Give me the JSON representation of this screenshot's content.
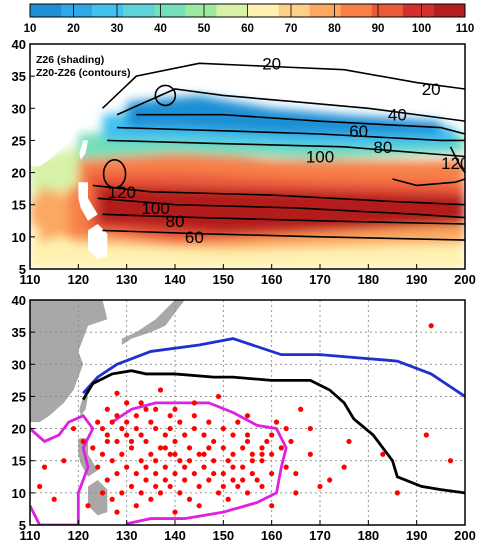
{
  "colors": {
    "colorbar": [
      "#1f8fd6",
      "#2fa7e8",
      "#43c1ee",
      "#5fd3d9",
      "#74dfb8",
      "#9ee9a0",
      "#d8f2a8",
      "#fff2b0",
      "#fdd08a",
      "#fba860",
      "#f78048",
      "#ec5a3c",
      "#d43030",
      "#b41f1f"
    ],
    "land": "#a8a8a8",
    "grid": "#8a8a8a",
    "contour": "#000000",
    "dots": "#ff0000",
    "blue_line": "#1f2fd0",
    "black_line": "#000000",
    "magenta_line": "#e020e0"
  },
  "chart_data": [
    {
      "type": "colorbar",
      "ticks": [
        10,
        20,
        30,
        40,
        50,
        60,
        70,
        80,
        90,
        100,
        110
      ],
      "range": [
        10,
        110
      ]
    },
    {
      "type": "heatmap",
      "title_lines": [
        "Z26 (shading)",
        "Z20-Z26 (contours)"
      ],
      "xlim": [
        110,
        200
      ],
      "ylim": [
        5,
        40
      ],
      "xticks": [
        110,
        120,
        130,
        140,
        150,
        160,
        170,
        180,
        190,
        200
      ],
      "yticks": [
        5,
        10,
        15,
        20,
        25,
        30,
        35,
        40
      ],
      "contour_labels": [
        {
          "text": "20",
          "lon": 160,
          "lat": 37
        },
        {
          "text": "20",
          "lon": 193,
          "lat": 33
        },
        {
          "text": "40",
          "lon": 186,
          "lat": 29
        },
        {
          "text": "60",
          "lon": 178,
          "lat": 26.5
        },
        {
          "text": "80",
          "lon": 183,
          "lat": 24
        },
        {
          "text": "100",
          "lon": 170,
          "lat": 22.5
        },
        {
          "text": "120",
          "lon": 198,
          "lat": 21.5
        },
        {
          "text": "120",
          "lon": 129,
          "lat": 17
        },
        {
          "text": "100",
          "lon": 136,
          "lat": 14.5
        },
        {
          "text": "80",
          "lon": 140,
          "lat": 12.5
        },
        {
          "text": "60",
          "lon": 144,
          "lat": 10
        }
      ]
    },
    {
      "type": "scatter",
      "xlim": [
        110,
        200
      ],
      "ylim": [
        5,
        40
      ],
      "xticks": [
        110,
        120,
        130,
        140,
        150,
        160,
        170,
        180,
        190,
        200
      ],
      "yticks": [
        5,
        10,
        15,
        20,
        25,
        30,
        35,
        40
      ],
      "grid": true,
      "blue_line": [
        [
          121,
          25.5
        ],
        [
          124,
          28
        ],
        [
          128,
          30
        ],
        [
          135,
          32
        ],
        [
          145,
          33
        ],
        [
          152,
          34
        ],
        [
          156,
          33
        ],
        [
          162,
          31.5
        ],
        [
          170,
          31.5
        ],
        [
          178,
          31
        ],
        [
          186,
          30.5
        ],
        [
          193,
          28.5
        ],
        [
          200,
          25
        ]
      ],
      "black_line": [
        [
          121,
          24.5
        ],
        [
          123,
          27
        ],
        [
          127,
          28.5
        ],
        [
          131,
          29
        ],
        [
          134,
          28.5
        ],
        [
          140,
          28.5
        ],
        [
          148,
          28
        ],
        [
          152,
          28
        ],
        [
          160,
          27.5
        ],
        [
          168,
          27.5
        ],
        [
          172,
          26
        ],
        [
          175,
          24
        ],
        [
          177,
          21.5
        ],
        [
          181,
          19
        ],
        [
          185,
          15
        ],
        [
          186,
          12.5
        ],
        [
          191,
          11
        ],
        [
          195,
          10.5
        ],
        [
          200,
          10
        ]
      ],
      "magenta_line": [
        [
          110,
          20
        ],
        [
          113,
          18
        ],
        [
          116,
          19
        ],
        [
          118,
          21
        ],
        [
          121,
          22
        ],
        [
          123,
          20
        ],
        [
          121,
          17
        ],
        [
          122,
          14
        ],
        [
          120,
          10
        ],
        [
          120,
          5
        ],
        [
          112,
          5
        ],
        [
          110,
          8
        ]
      ],
      "magenta_line_2": [
        [
          127,
          21
        ],
        [
          131,
          23
        ],
        [
          136,
          24
        ],
        [
          142,
          24
        ],
        [
          147,
          24
        ],
        [
          152,
          22.5
        ],
        [
          157,
          20.5
        ],
        [
          161,
          20
        ],
        [
          163,
          17
        ],
        [
          162,
          14
        ],
        [
          161,
          10
        ],
        [
          157,
          8.5
        ],
        [
          150,
          7
        ],
        [
          142,
          6
        ],
        [
          135,
          6
        ],
        [
          130,
          5.2
        ]
      ],
      "points": [
        [
          119,
          20
        ],
        [
          117,
          15
        ],
        [
          113,
          14
        ],
        [
          112,
          11
        ],
        [
          115,
          9
        ],
        [
          122,
          8
        ],
        [
          124,
          21
        ],
        [
          126,
          23
        ],
        [
          128,
          22
        ],
        [
          130,
          21
        ],
        [
          132,
          22
        ],
        [
          134,
          23
        ],
        [
          136,
          23
        ],
        [
          139,
          22
        ],
        [
          141,
          21
        ],
        [
          144,
          22
        ],
        [
          147,
          21
        ],
        [
          150,
          20
        ],
        [
          152,
          19
        ],
        [
          155,
          18
        ],
        [
          158,
          16
        ],
        [
          157,
          12
        ],
        [
          160,
          13
        ],
        [
          163,
          14
        ],
        [
          165,
          13
        ],
        [
          168,
          16
        ],
        [
          172,
          12
        ],
        [
          176,
          18
        ],
        [
          183,
          16
        ],
        [
          193,
          36
        ],
        [
          192,
          19
        ],
        [
          197,
          15
        ],
        [
          186,
          10
        ],
        [
          175,
          14
        ],
        [
          166,
          23
        ],
        [
          149,
          25
        ],
        [
          137,
          26
        ],
        [
          128,
          25.5
        ],
        [
          126,
          19
        ],
        [
          128,
          18
        ],
        [
          130,
          19
        ],
        [
          132,
          20
        ],
        [
          134,
          18
        ],
        [
          136,
          20
        ],
        [
          138,
          19
        ],
        [
          140,
          18
        ],
        [
          142,
          19
        ],
        [
          144,
          20
        ],
        [
          146,
          19
        ],
        [
          148,
          18
        ],
        [
          150,
          17
        ],
        [
          152,
          16
        ],
        [
          154,
          17
        ],
        [
          156,
          16
        ],
        [
          158,
          15
        ],
        [
          160,
          16
        ],
        [
          162,
          17
        ],
        [
          164,
          18
        ],
        [
          153,
          21
        ],
        [
          145,
          16
        ],
        [
          143,
          17
        ],
        [
          141,
          15
        ],
        [
          139,
          16
        ],
        [
          137,
          17
        ],
        [
          135,
          16
        ],
        [
          133,
          15
        ],
        [
          131,
          17
        ],
        [
          129,
          16
        ],
        [
          127,
          15
        ],
        [
          125,
          16
        ],
        [
          123,
          17
        ],
        [
          121,
          18
        ],
        [
          126,
          12
        ],
        [
          128,
          13
        ],
        [
          130,
          14
        ],
        [
          132,
          13
        ],
        [
          134,
          12
        ],
        [
          136,
          13
        ],
        [
          138,
          14
        ],
        [
          140,
          13
        ],
        [
          142,
          12
        ],
        [
          144,
          13
        ],
        [
          146,
          14
        ],
        [
          148,
          15
        ],
        [
          150,
          13
        ],
        [
          152,
          12
        ],
        [
          154,
          14
        ],
        [
          156,
          13
        ],
        [
          158,
          11
        ],
        [
          125,
          10
        ],
        [
          127,
          9
        ],
        [
          129,
          10
        ],
        [
          131,
          11
        ],
        [
          133,
          10
        ],
        [
          135,
          9
        ],
        [
          137,
          10
        ],
        [
          139,
          11
        ],
        [
          141,
          10
        ],
        [
          143,
          9
        ],
        [
          145,
          11
        ],
        [
          147,
          12
        ],
        [
          149,
          10
        ],
        [
          151,
          9
        ],
        [
          153,
          11
        ],
        [
          155,
          10
        ],
        [
          145,
          8
        ],
        [
          140,
          7
        ],
        [
          132,
          8
        ],
        [
          128,
          7
        ],
        [
          124,
          14
        ],
        [
          126,
          18
        ],
        [
          133,
          19
        ],
        [
          139,
          20
        ],
        [
          143,
          15
        ],
        [
          147,
          17
        ],
        [
          151,
          15
        ],
        [
          155,
          19
        ],
        [
          159,
          18
        ],
        [
          161,
          21
        ],
        [
          163,
          20
        ],
        [
          135,
          21
        ],
        [
          131,
          18
        ],
        [
          129,
          20
        ],
        [
          127,
          21
        ],
        [
          125,
          20
        ],
        [
          136,
          15
        ],
        [
          138,
          12
        ],
        [
          142,
          14
        ],
        [
          146,
          16
        ],
        [
          148,
          13
        ],
        [
          150,
          11
        ],
        [
          152,
          14
        ],
        [
          154,
          12
        ],
        [
          156,
          15
        ],
        [
          158,
          17
        ],
        [
          160,
          19
        ],
        [
          144,
          24
        ],
        [
          140,
          23
        ],
        [
          133,
          24
        ],
        [
          130,
          24
        ],
        [
          155,
          22
        ],
        [
          165,
          10
        ],
        [
          168,
          20
        ],
        [
          170,
          11
        ],
        [
          160,
          8
        ],
        [
          136,
          11
        ],
        [
          134,
          14
        ],
        [
          138,
          17
        ],
        [
          140,
          16
        ]
      ]
    }
  ]
}
